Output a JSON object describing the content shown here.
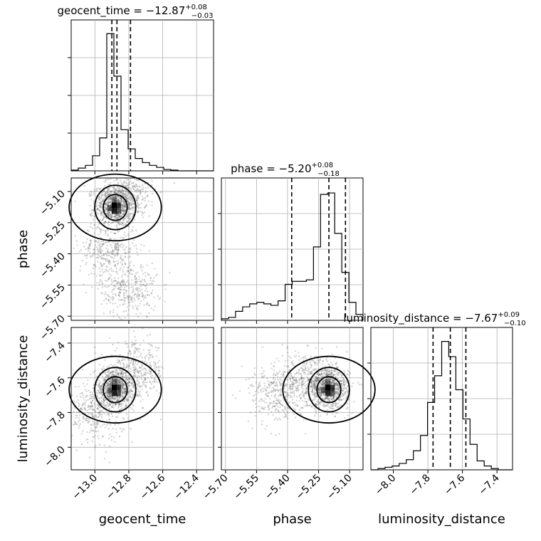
{
  "chart_data": {
    "type": "corner",
    "parameters": [
      "geocent_time",
      "phase",
      "luminosity_distance"
    ],
    "axis_labels": {
      "geocent_time": "geocent_time",
      "phase": "phase",
      "luminosity_distance": "luminosity_distance"
    },
    "titles": [
      {
        "param": "geocent_time",
        "prefix": "geocent_time = −12.87",
        "sup": "+0.08",
        "sub": "−0.03"
      },
      {
        "param": "phase",
        "prefix": "phase = −5.20",
        "sup": "+0.08",
        "sub": "−0.18"
      },
      {
        "param": "luminosity_distance",
        "prefix": "luminosity_distance = −7.67",
        "sup": "+0.09",
        "sub": "−0.10"
      }
    ],
    "ranges": {
      "geocent_time": [
        -13.14,
        -12.3
      ],
      "phase": [
        -5.72,
        -5.035
      ],
      "luminosity_distance": [
        -8.13,
        -7.31
      ]
    },
    "ticks": {
      "geocent_time": {
        "values": [
          -13.0,
          -12.8,
          -12.6,
          -12.4
        ],
        "labels": [
          "−13.0",
          "−12.8",
          "−12.6",
          "−12.4"
        ]
      },
      "phase": {
        "values": [
          -5.7,
          -5.55,
          -5.4,
          -5.25,
          -5.1
        ],
        "labels": [
          "−5.70",
          "−5.55",
          "−5.40",
          "−5.25",
          "−5.10"
        ]
      },
      "luminosity_distance": {
        "values": [
          -8.0,
          -7.8,
          -7.6,
          -7.4
        ],
        "labels": [
          "−8.0",
          "−7.8",
          "−7.6",
          "−7.4"
        ]
      }
    },
    "quantiles": {
      "geocent_time": [
        -12.9,
        -12.87,
        -12.79
      ],
      "phase": [
        -5.38,
        -5.2,
        -5.12
      ],
      "luminosity_distance": [
        -7.77,
        -7.67,
        -7.58
      ]
    },
    "histograms": {
      "geocent_time": {
        "edges_min": -13.14,
        "edges_max": -12.3,
        "counts": [
          0.5,
          2,
          4,
          11,
          24,
          100,
          69,
          30,
          16,
          9,
          6,
          4,
          2.5,
          1,
          0.5,
          0,
          0,
          0,
          0,
          0
        ],
        "ymax": 110
      },
      "phase": {
        "edges_min": -5.72,
        "edges_max": -5.035,
        "counts": [
          1,
          2,
          6,
          9,
          11,
          12,
          11,
          10,
          13,
          24,
          26,
          26,
          27,
          49,
          84,
          85,
          58,
          32,
          12,
          4
        ],
        "ymax": 95
      },
      "luminosity_distance": {
        "edges_min": -8.13,
        "edges_max": -7.31,
        "counts": [
          0,
          1,
          2,
          3,
          5,
          8,
          15,
          27,
          53,
          74,
          101,
          89,
          63,
          40,
          20,
          7,
          3,
          1,
          0,
          0
        ],
        "ymax": 112
      }
    },
    "scatter_centers": {
      "phase_vs_geocent_time": [
        [
          -12.88,
          -5.17
        ],
        [
          -12.8,
          -5.09
        ],
        [
          -12.92,
          -5.38
        ],
        [
          -12.8,
          -5.57
        ]
      ],
      "luminosity_distance_vs_geocent_time": [
        [
          -12.88,
          -7.66
        ],
        [
          -12.75,
          -7.56
        ],
        [
          -13.0,
          -7.8
        ]
      ],
      "luminosity_distance_vs_phase": [
        [
          -5.2,
          -7.66
        ],
        [
          -5.45,
          -7.7
        ],
        [
          -5.3,
          -7.6
        ]
      ]
    },
    "grid": true
  }
}
